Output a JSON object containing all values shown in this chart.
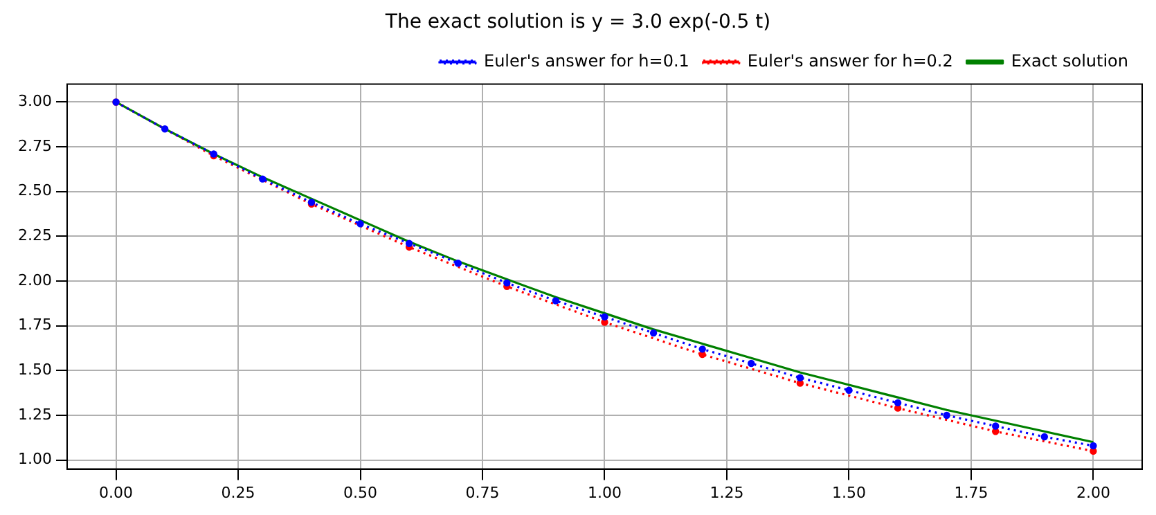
{
  "chart_data": {
    "type": "line",
    "title": "The exact solution is y = 3.0 exp(-0.5 t)",
    "series": [
      {
        "name": "Exact solution",
        "color": "#008000",
        "marker": "none",
        "line_style": "solid",
        "x": [
          0,
          0.1,
          0.2,
          0.3,
          0.4,
          0.5,
          0.6,
          0.7,
          0.8,
          0.9,
          1.0,
          1.1,
          1.2,
          1.3,
          1.4,
          1.5,
          1.6,
          1.7,
          1.8,
          1.9,
          2.0
        ],
        "values": [
          3.0,
          2.85,
          2.71,
          2.58,
          2.46,
          2.34,
          2.22,
          2.11,
          2.01,
          1.91,
          1.82,
          1.73,
          1.65,
          1.57,
          1.49,
          1.42,
          1.35,
          1.28,
          1.22,
          1.16,
          1.1
        ]
      },
      {
        "name": "Euler's answer for h=0.2",
        "color": "#ff0000",
        "marker": "circle",
        "line_style": "dotted",
        "x": [
          0,
          0.2,
          0.4,
          0.6,
          0.8,
          1.0,
          1.2,
          1.4,
          1.6,
          1.8,
          2.0
        ],
        "values": [
          3.0,
          2.7,
          2.43,
          2.19,
          1.97,
          1.77,
          1.59,
          1.43,
          1.29,
          1.16,
          1.05
        ]
      },
      {
        "name": "Euler's answer for h=0.1",
        "color": "#0000ff",
        "marker": "circle",
        "line_style": "dotted",
        "x": [
          0,
          0.1,
          0.2,
          0.3,
          0.4,
          0.5,
          0.6,
          0.7,
          0.8,
          0.9,
          1.0,
          1.1,
          1.2,
          1.3,
          1.4,
          1.5,
          1.6,
          1.7,
          1.8,
          1.9,
          2.0
        ],
        "values": [
          3.0,
          2.85,
          2.71,
          2.57,
          2.44,
          2.32,
          2.21,
          2.1,
          1.99,
          1.89,
          1.8,
          1.71,
          1.62,
          1.54,
          1.46,
          1.39,
          1.32,
          1.25,
          1.19,
          1.13,
          1.08
        ]
      }
    ],
    "xlim": [
      -0.1,
      2.1
    ],
    "xticks": [
      {
        "value": 0,
        "label": "0.00"
      },
      {
        "value": 0.25,
        "label": "0.25"
      },
      {
        "value": 0.5,
        "label": "0.50"
      },
      {
        "value": 0.75,
        "label": "0.75"
      },
      {
        "value": 1,
        "label": "1.00"
      },
      {
        "value": 1.25,
        "label": "1.25"
      },
      {
        "value": 1.5,
        "label": "1.50"
      },
      {
        "value": 1.75,
        "label": "1.75"
      },
      {
        "value": 2,
        "label": "2.00"
      }
    ],
    "ylim": [
      0.95,
      3.1
    ],
    "yticks": [
      {
        "value": 1,
        "label": "1.00"
      },
      {
        "value": 1.25,
        "label": "1.25"
      },
      {
        "value": 1.5,
        "label": "1.50"
      },
      {
        "value": 1.75,
        "label": "1.75"
      },
      {
        "value": 2,
        "label": "2.00"
      },
      {
        "value": 2.25,
        "label": "2.25"
      },
      {
        "value": 2.5,
        "label": "2.50"
      },
      {
        "value": 2.75,
        "label": "2.75"
      },
      {
        "value": 3,
        "label": "3.00"
      }
    ],
    "grid": true,
    "legend": "top right"
  }
}
